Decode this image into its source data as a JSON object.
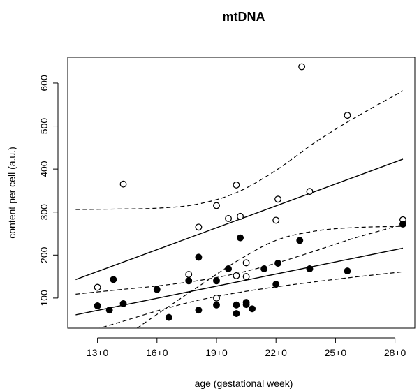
{
  "chart_data": {
    "type": "scatter",
    "title": "mtDNA",
    "xlabel": "age (gestational week)",
    "ylabel": "content per cell (a.u.)",
    "xlim": [
      11.5,
      29
    ],
    "ylim": [
      30,
      660
    ],
    "x_ticks": [
      13,
      16,
      19,
      22,
      25,
      28
    ],
    "x_tick_labels": [
      "13+0",
      "16+0",
      "19+0",
      "22+0",
      "25+0",
      "28+0"
    ],
    "y_ticks": [
      100,
      200,
      300,
      400,
      500,
      600
    ],
    "y_tick_labels": [
      "100",
      "200",
      "300",
      "400",
      "500",
      "600"
    ],
    "grid": false,
    "legend": "none",
    "series": [
      {
        "marker": "open-circle",
        "color": "#000000",
        "points": [
          {
            "x": 13.0,
            "y": 125
          },
          {
            "x": 14.3,
            "y": 365
          },
          {
            "x": 17.6,
            "y": 155
          },
          {
            "x": 18.1,
            "y": 265
          },
          {
            "x": 19.0,
            "y": 100
          },
          {
            "x": 19.0,
            "y": 315
          },
          {
            "x": 19.6,
            "y": 285
          },
          {
            "x": 20.0,
            "y": 363
          },
          {
            "x": 20.0,
            "y": 152
          },
          {
            "x": 20.2,
            "y": 290
          },
          {
            "x": 20.5,
            "y": 182
          },
          {
            "x": 20.5,
            "y": 150
          },
          {
            "x": 22.0,
            "y": 281
          },
          {
            "x": 22.1,
            "y": 330
          },
          {
            "x": 23.3,
            "y": 638
          },
          {
            "x": 23.7,
            "y": 348
          },
          {
            "x": 25.6,
            "y": 525
          },
          {
            "x": 28.4,
            "y": 282
          }
        ],
        "fit_line": {
          "x": [
            11.9,
            28.4
          ],
          "y": [
            143,
            423
          ]
        },
        "ci_upper": [
          {
            "x": 11.9,
            "y": 306
          },
          {
            "x": 14,
            "y": 307
          },
          {
            "x": 16,
            "y": 309
          },
          {
            "x": 18,
            "y": 318
          },
          {
            "x": 20,
            "y": 345
          },
          {
            "x": 22,
            "y": 397
          },
          {
            "x": 24,
            "y": 463
          },
          {
            "x": 26,
            "y": 520
          },
          {
            "x": 28.4,
            "y": 582
          }
        ],
        "ci_lower": [
          {
            "x": 15.0,
            "y": 30
          },
          {
            "x": 16,
            "y": 62
          },
          {
            "x": 18,
            "y": 124
          },
          {
            "x": 20,
            "y": 185
          },
          {
            "x": 22,
            "y": 234
          },
          {
            "x": 24,
            "y": 256
          },
          {
            "x": 26,
            "y": 264
          },
          {
            "x": 28.4,
            "y": 267
          }
        ]
      },
      {
        "marker": "filled-circle",
        "color": "#000000",
        "points": [
          {
            "x": 13.0,
            "y": 82
          },
          {
            "x": 13.6,
            "y": 72
          },
          {
            "x": 13.8,
            "y": 143
          },
          {
            "x": 14.3,
            "y": 87
          },
          {
            "x": 16.0,
            "y": 120
          },
          {
            "x": 16.6,
            "y": 55
          },
          {
            "x": 17.6,
            "y": 140
          },
          {
            "x": 18.1,
            "y": 195
          },
          {
            "x": 18.1,
            "y": 72
          },
          {
            "x": 19.0,
            "y": 140
          },
          {
            "x": 19.0,
            "y": 84
          },
          {
            "x": 19.6,
            "y": 168
          },
          {
            "x": 20.0,
            "y": 84
          },
          {
            "x": 20.0,
            "y": 64
          },
          {
            "x": 20.2,
            "y": 240
          },
          {
            "x": 20.5,
            "y": 90
          },
          {
            "x": 20.5,
            "y": 85
          },
          {
            "x": 20.8,
            "y": 75
          },
          {
            "x": 21.4,
            "y": 168
          },
          {
            "x": 22.0,
            "y": 132
          },
          {
            "x": 22.1,
            "y": 181
          },
          {
            "x": 23.2,
            "y": 234
          },
          {
            "x": 23.7,
            "y": 168
          },
          {
            "x": 25.6,
            "y": 163
          },
          {
            "x": 28.4,
            "y": 272
          }
        ],
        "fit_line": {
          "x": [
            11.9,
            28.4
          ],
          "y": [
            61,
            216
          ]
        },
        "ci_upper": [
          {
            "x": 11.9,
            "y": 109
          },
          {
            "x": 14,
            "y": 119
          },
          {
            "x": 16,
            "y": 128
          },
          {
            "x": 18,
            "y": 140
          },
          {
            "x": 20,
            "y": 157
          },
          {
            "x": 22,
            "y": 181
          },
          {
            "x": 24,
            "y": 210
          },
          {
            "x": 26,
            "y": 240
          },
          {
            "x": 28.4,
            "y": 271
          }
        ],
        "ci_lower": [
          {
            "x": 11.9,
            "y": 14
          },
          {
            "x": 14,
            "y": 42
          },
          {
            "x": 16,
            "y": 70
          },
          {
            "x": 18,
            "y": 94
          },
          {
            "x": 20,
            "y": 112
          },
          {
            "x": 22,
            "y": 126
          },
          {
            "x": 24,
            "y": 138
          },
          {
            "x": 26,
            "y": 149
          },
          {
            "x": 28.4,
            "y": 161
          }
        ]
      }
    ]
  }
}
